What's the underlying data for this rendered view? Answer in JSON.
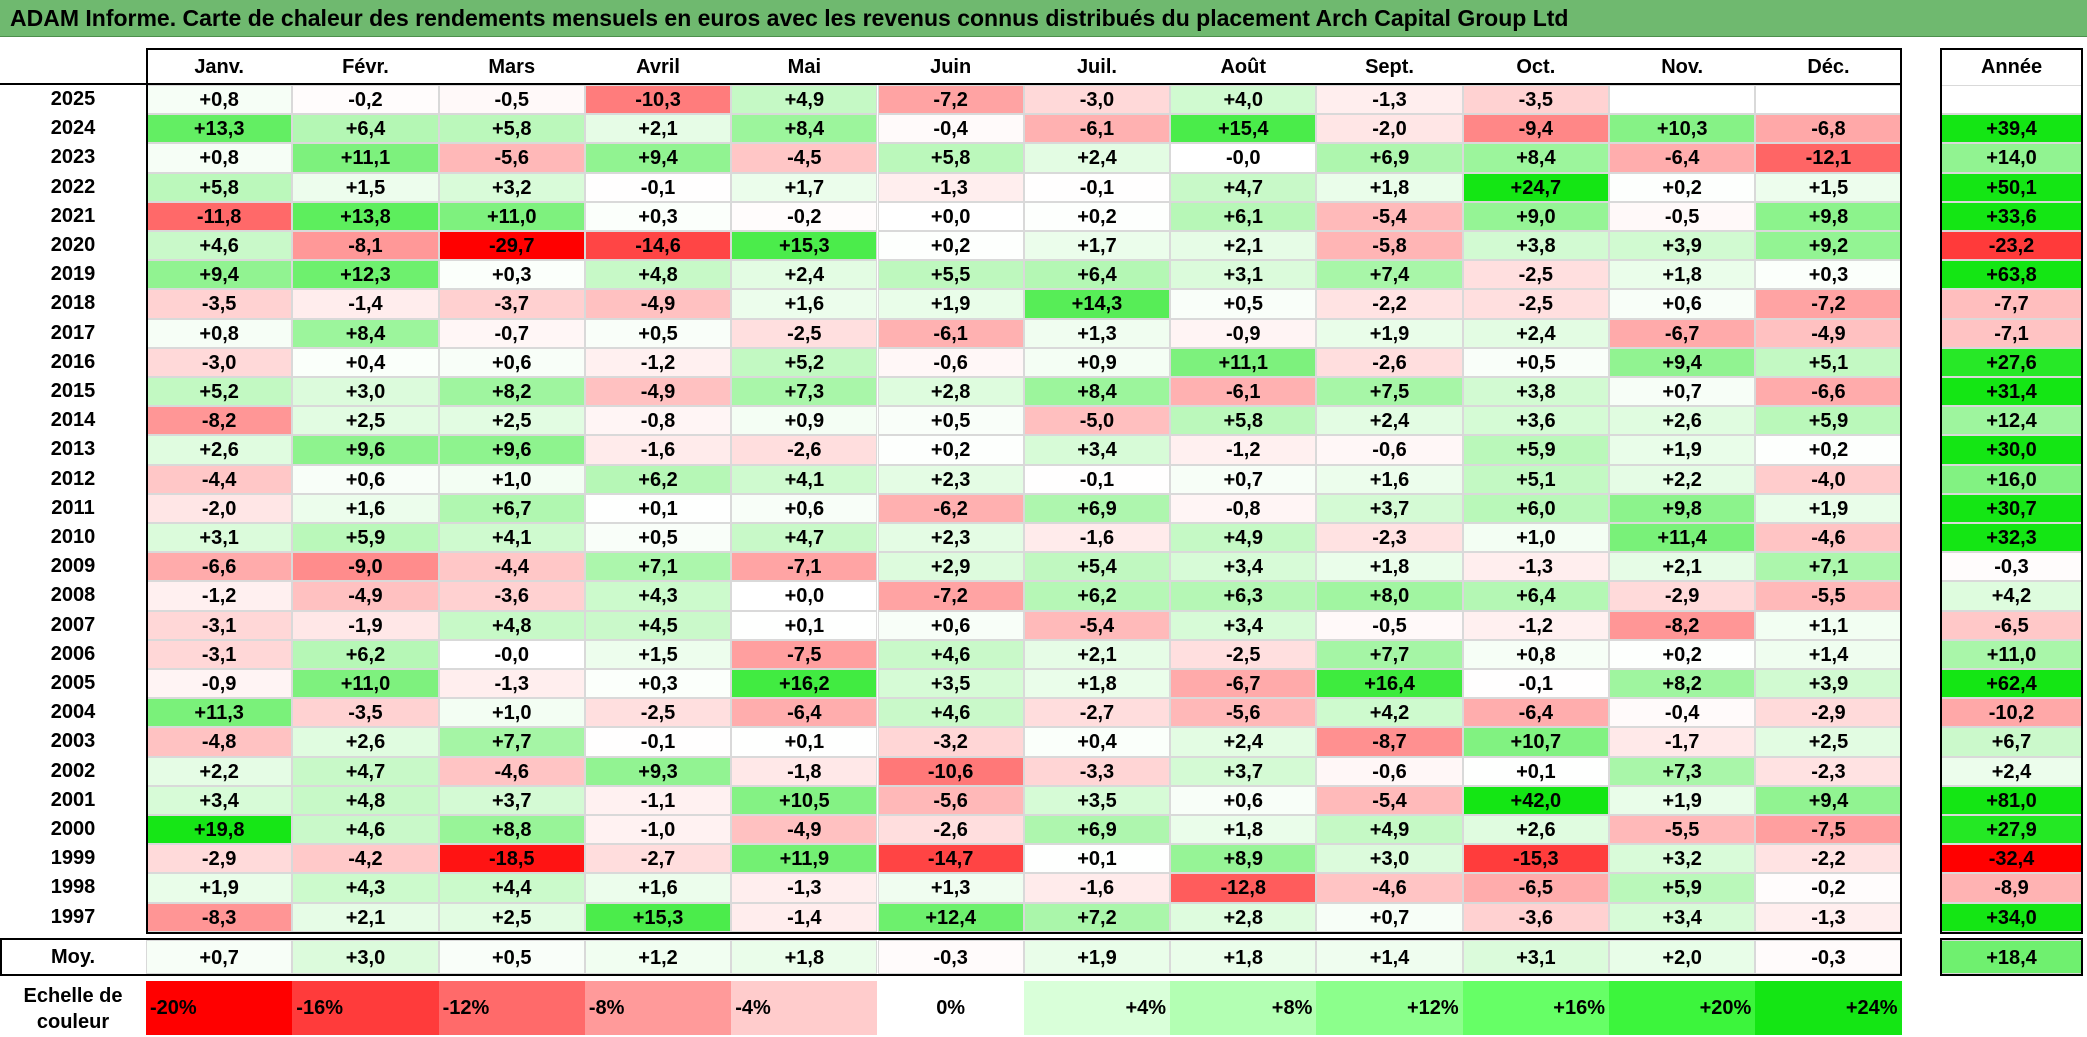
{
  "title": "ADAM Informe. Carte de chaleur des rendements mensuels en euros avec les revenus connus distribués du placement Arch Capital Group Ltd",
  "chart_data": {
    "type": "heatmap",
    "columns": [
      "Janv.",
      "Févr.",
      "Mars",
      "Avril",
      "Mai",
      "Juin",
      "Juil.",
      "Août",
      "Sept.",
      "Oct.",
      "Nov.",
      "Déc."
    ],
    "total_label": "Année",
    "rows": [
      {
        "year": "2025",
        "values": [
          "+0,8",
          "-0,2",
          "-0,5",
          "-10,3",
          "+4,9",
          "-7,2",
          "-3,0",
          "+4,0",
          "-1,3",
          "-3,5",
          "",
          ""
        ],
        "total": ""
      },
      {
        "year": "2024",
        "values": [
          "+13,3",
          "+6,4",
          "+5,8",
          "+2,1",
          "+8,4",
          "-0,4",
          "-6,1",
          "+15,4",
          "-2,0",
          "-9,4",
          "+10,3",
          "-6,8"
        ],
        "total": "+39,4"
      },
      {
        "year": "2023",
        "values": [
          "+0,8",
          "+11,1",
          "-5,6",
          "+9,4",
          "-4,5",
          "+5,8",
          "+2,4",
          "-0,0",
          "+6,9",
          "+8,4",
          "-6,4",
          "-12,1"
        ],
        "total": "+14,0"
      },
      {
        "year": "2022",
        "values": [
          "+5,8",
          "+1,5",
          "+3,2",
          "-0,1",
          "+1,7",
          "-1,3",
          "-0,1",
          "+4,7",
          "+1,8",
          "+24,7",
          "+0,2",
          "+1,5"
        ],
        "total": "+50,1"
      },
      {
        "year": "2021",
        "values": [
          "-11,8",
          "+13,8",
          "+11,0",
          "+0,3",
          "-0,2",
          "+0,0",
          "+0,2",
          "+6,1",
          "-5,4",
          "+9,0",
          "-0,5",
          "+9,8"
        ],
        "total": "+33,6"
      },
      {
        "year": "2020",
        "values": [
          "+4,6",
          "-8,1",
          "-29,7",
          "-14,6",
          "+15,3",
          "+0,2",
          "+1,7",
          "+2,1",
          "-5,8",
          "+3,8",
          "+3,9",
          "+9,2"
        ],
        "total": "-23,2"
      },
      {
        "year": "2019",
        "values": [
          "+9,4",
          "+12,3",
          "+0,3",
          "+4,8",
          "+2,4",
          "+5,5",
          "+6,4",
          "+3,1",
          "+7,4",
          "-2,5",
          "+1,8",
          "+0,3"
        ],
        "total": "+63,8"
      },
      {
        "year": "2018",
        "values": [
          "-3,5",
          "-1,4",
          "-3,7",
          "-4,9",
          "+1,6",
          "+1,9",
          "+14,3",
          "+0,5",
          "-2,2",
          "-2,5",
          "+0,6",
          "-7,2"
        ],
        "total": "-7,7"
      },
      {
        "year": "2017",
        "values": [
          "+0,8",
          "+8,4",
          "-0,7",
          "+0,5",
          "-2,5",
          "-6,1",
          "+1,3",
          "-0,9",
          "+1,9",
          "+2,4",
          "-6,7",
          "-4,9"
        ],
        "total": "-7,1"
      },
      {
        "year": "2016",
        "values": [
          "-3,0",
          "+0,4",
          "+0,6",
          "-1,2",
          "+5,2",
          "-0,6",
          "+0,9",
          "+11,1",
          "-2,6",
          "+0,5",
          "+9,4",
          "+5,1"
        ],
        "total": "+27,6"
      },
      {
        "year": "2015",
        "values": [
          "+5,2",
          "+3,0",
          "+8,2",
          "-4,9",
          "+7,3",
          "+2,8",
          "+8,4",
          "-6,1",
          "+7,5",
          "+3,8",
          "+0,7",
          "-6,6"
        ],
        "total": "+31,4"
      },
      {
        "year": "2014",
        "values": [
          "-8,2",
          "+2,5",
          "+2,5",
          "-0,8",
          "+0,9",
          "+0,5",
          "-5,0",
          "+5,8",
          "+2,4",
          "+3,6",
          "+2,6",
          "+5,9"
        ],
        "total": "+12,4"
      },
      {
        "year": "2013",
        "values": [
          "+2,6",
          "+9,6",
          "+9,6",
          "-1,6",
          "-2,6",
          "+0,2",
          "+3,4",
          "-1,2",
          "-0,6",
          "+5,9",
          "+1,9",
          "+0,2"
        ],
        "total": "+30,0"
      },
      {
        "year": "2012",
        "values": [
          "-4,4",
          "+0,6",
          "+1,0",
          "+6,2",
          "+4,1",
          "+2,3",
          "-0,1",
          "+0,7",
          "+1,6",
          "+5,1",
          "+2,2",
          "-4,0"
        ],
        "total": "+16,0"
      },
      {
        "year": "2011",
        "values": [
          "-2,0",
          "+1,6",
          "+6,7",
          "+0,1",
          "+0,6",
          "-6,2",
          "+6,9",
          "-0,8",
          "+3,7",
          "+6,0",
          "+9,8",
          "+1,9"
        ],
        "total": "+30,7"
      },
      {
        "year": "2010",
        "values": [
          "+3,1",
          "+5,9",
          "+4,1",
          "+0,5",
          "+4,7",
          "+2,3",
          "-1,6",
          "+4,9",
          "-2,3",
          "+1,0",
          "+11,4",
          "-4,6"
        ],
        "total": "+32,3"
      },
      {
        "year": "2009",
        "values": [
          "-6,6",
          "-9,0",
          "-4,4",
          "+7,1",
          "-7,1",
          "+2,9",
          "+5,4",
          "+3,4",
          "+1,8",
          "-1,3",
          "+2,1",
          "+7,1"
        ],
        "total": "-0,3"
      },
      {
        "year": "2008",
        "values": [
          "-1,2",
          "-4,9",
          "-3,6",
          "+4,3",
          "+0,0",
          "-7,2",
          "+6,2",
          "+6,3",
          "+8,0",
          "+6,4",
          "-2,9",
          "-5,5"
        ],
        "total": "+4,2"
      },
      {
        "year": "2007",
        "values": [
          "-3,1",
          "-1,9",
          "+4,8",
          "+4,5",
          "+0,1",
          "+0,6",
          "-5,4",
          "+3,4",
          "-0,5",
          "-1,2",
          "-8,2",
          "+1,1"
        ],
        "total": "-6,5"
      },
      {
        "year": "2006",
        "values": [
          "-3,1",
          "+6,2",
          "-0,0",
          "+1,5",
          "-7,5",
          "+4,6",
          "+2,1",
          "-2,5",
          "+7,7",
          "+0,8",
          "+0,2",
          "+1,4"
        ],
        "total": "+11,0"
      },
      {
        "year": "2005",
        "values": [
          "-0,9",
          "+11,0",
          "-1,3",
          "+0,3",
          "+16,2",
          "+3,5",
          "+1,8",
          "-6,7",
          "+16,4",
          "-0,1",
          "+8,2",
          "+3,9"
        ],
        "total": "+62,4"
      },
      {
        "year": "2004",
        "values": [
          "+11,3",
          "-3,5",
          "+1,0",
          "-2,5",
          "-6,4",
          "+4,6",
          "-2,7",
          "-5,6",
          "+4,2",
          "-6,4",
          "-0,4",
          "-2,9"
        ],
        "total": "-10,2"
      },
      {
        "year": "2003",
        "values": [
          "-4,8",
          "+2,6",
          "+7,7",
          "-0,1",
          "+0,1",
          "-3,2",
          "+0,4",
          "+2,4",
          "-8,7",
          "+10,7",
          "-1,7",
          "+2,5"
        ],
        "total": "+6,7"
      },
      {
        "year": "2002",
        "values": [
          "+2,2",
          "+4,7",
          "-4,6",
          "+9,3",
          "-1,8",
          "-10,6",
          "-3,3",
          "+3,7",
          "-0,6",
          "+0,1",
          "+7,3",
          "-2,3"
        ],
        "total": "+2,4"
      },
      {
        "year": "2001",
        "values": [
          "+3,4",
          "+4,8",
          "+3,7",
          "-1,1",
          "+10,5",
          "-5,6",
          "+3,5",
          "+0,6",
          "-5,4",
          "+42,0",
          "+1,9",
          "+9,4"
        ],
        "total": "+81,0"
      },
      {
        "year": "2000",
        "values": [
          "+19,8",
          "+4,6",
          "+8,8",
          "-1,0",
          "-4,9",
          "-2,6",
          "+6,9",
          "+1,8",
          "+4,9",
          "+2,6",
          "-5,5",
          "-7,5"
        ],
        "total": "+27,9"
      },
      {
        "year": "1999",
        "values": [
          "-2,9",
          "-4,2",
          "-18,5",
          "-2,7",
          "+11,9",
          "-14,7",
          "+0,1",
          "+8,9",
          "+3,0",
          "-15,3",
          "+3,2",
          "-2,2"
        ],
        "total": "-32,4"
      },
      {
        "year": "1998",
        "values": [
          "+1,9",
          "+4,3",
          "+4,4",
          "+1,6",
          "-1,3",
          "+1,3",
          "-1,6",
          "-12,8",
          "-4,6",
          "-6,5",
          "+5,9",
          "-0,2"
        ],
        "total": "-8,9"
      },
      {
        "year": "1997",
        "values": [
          "-8,3",
          "+2,1",
          "+2,5",
          "+15,3",
          "-1,4",
          "+12,4",
          "+7,2",
          "+2,8",
          "+0,7",
          "-3,6",
          "+3,4",
          "-1,3"
        ],
        "total": "+34,0"
      }
    ],
    "average": {
      "label": "Moy.",
      "values": [
        "+0,7",
        "+3,0",
        "+0,5",
        "+1,2",
        "+1,8",
        "-0,3",
        "+1,9",
        "+1,8",
        "+1,4",
        "+3,1",
        "+2,0",
        "-0,3"
      ],
      "total": "+18,4"
    },
    "color_scale": {
      "label": "Echelle de couleur",
      "stops": [
        {
          "text": "-20%",
          "color": "#ff0000"
        },
        {
          "text": "-16%",
          "color": "#ff3b3b"
        },
        {
          "text": "-12%",
          "color": "#ff6a6a"
        },
        {
          "text": "-8%",
          "color": "#ff9a9a"
        },
        {
          "text": "-4%",
          "color": "#ffcccc"
        },
        {
          "text": "0%",
          "color": "#ffffff"
        },
        {
          "text": "+4%",
          "color": "#d9ffd9"
        },
        {
          "text": "+8%",
          "color": "#b3ffb3"
        },
        {
          "text": "+12%",
          "color": "#8cff8c"
        },
        {
          "text": "+16%",
          "color": "#66ff66"
        },
        {
          "text": "+20%",
          "color": "#3cf53c"
        },
        {
          "text": "+24%",
          "color": "#14e614"
        }
      ]
    },
    "colors": {
      "negative_max": "#ff0000",
      "positive_max": "#14e614",
      "neutral": "#ffffff",
      "title_bar": "#6fb96f"
    }
  }
}
